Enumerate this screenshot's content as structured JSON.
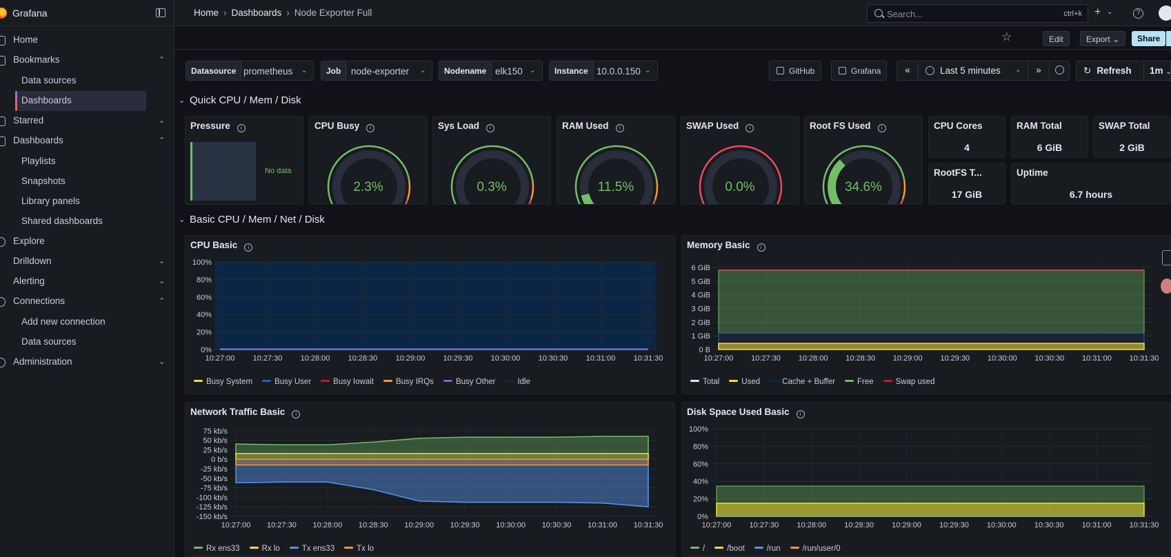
{
  "brand": "Grafana",
  "nav": {
    "home": "Home",
    "bookmarks": "Bookmarks",
    "bookmarks_items": [
      "Data sources",
      "Dashboards"
    ],
    "starred": "Starred",
    "dashboards": "Dashboards",
    "dashboards_items": [
      "Playlists",
      "Snapshots",
      "Library panels",
      "Shared dashboards"
    ],
    "explore": "Explore",
    "drilldown": "Drilldown",
    "alerting": "Alerting",
    "connections": "Connections",
    "connections_items": [
      "Add new connection",
      "Data sources"
    ],
    "administration": "Administration"
  },
  "breadcrumb": [
    "Home",
    "Dashboards",
    "Node Exporter Full"
  ],
  "search": {
    "placeholder": "Search...",
    "shortcut": "ctrl+k"
  },
  "toolbar": {
    "edit": "Edit",
    "export": "Export",
    "share": "Share"
  },
  "variables": [
    {
      "label": "Datasource",
      "value": "prometheus"
    },
    {
      "label": "Job",
      "value": "node-exporter"
    },
    {
      "label": "Nodename",
      "value": "elk150"
    },
    {
      "label": "Instance",
      "value": "10.0.0.150"
    }
  ],
  "links": [
    "GitHub",
    "Grafana"
  ],
  "time": {
    "range": "Last 5 minutes",
    "refresh": "Refresh",
    "interval": "1m"
  },
  "rows": [
    "Quick CPU / Mem / Disk",
    "Basic CPU / Mem / Net / Disk"
  ],
  "pressure": {
    "title": "Pressure",
    "nodata": "No data"
  },
  "gauges": [
    {
      "title": "CPU Busy",
      "value": "2.3%",
      "fraction": 0.023
    },
    {
      "title": "Sys Load",
      "value": "0.3%",
      "fraction": 0.003
    },
    {
      "title": "RAM Used",
      "value": "11.5%",
      "fraction": 0.115
    },
    {
      "title": "SWAP Used",
      "value": "0.0%",
      "fraction": 0.0
    },
    {
      "title": "Root FS Used",
      "value": "34.6%",
      "fraction": 0.346
    }
  ],
  "stats": [
    {
      "title": "CPU Cores",
      "value": "4"
    },
    {
      "title": "RAM Total",
      "value": "6 GiB"
    },
    {
      "title": "SWAP Total",
      "value": "2 GiB"
    },
    {
      "title": "RootFS T...",
      "value": "17 GiB"
    },
    {
      "title": "Uptime",
      "value": "6.7 hours"
    }
  ],
  "colors": {
    "green": "#73bf69",
    "yellow": "#fade2a",
    "blue": "#5794f2",
    "orange": "#ff9830",
    "red": "#f2495c",
    "purple": "#b877d9"
  },
  "chart_data": [
    {
      "type": "area",
      "title": "CPU Basic",
      "x": [
        "10:27:00",
        "10:27:30",
        "10:28:00",
        "10:28:30",
        "10:29:00",
        "10:29:30",
        "10:30:00",
        "10:30:30",
        "10:31:00",
        "10:31:30"
      ],
      "yticks": [
        "0%",
        "20%",
        "40%",
        "60%",
        "80%",
        "100%"
      ],
      "ylim": [
        0,
        100
      ],
      "series": [
        {
          "name": "Busy System",
          "color": "#fade2a",
          "values": [
            1,
            1,
            1,
            1,
            1,
            1,
            1,
            1,
            1,
            1
          ]
        },
        {
          "name": "Busy User",
          "color": "#1f60c4",
          "values": [
            1,
            1,
            1,
            1,
            1,
            1,
            1,
            1,
            1,
            1
          ]
        },
        {
          "name": "Busy Iowait",
          "color": "#c4162a",
          "values": [
            0,
            0,
            0,
            0,
            0,
            0,
            0,
            0,
            0,
            0
          ]
        },
        {
          "name": "Busy IRQs",
          "color": "#ff9830",
          "values": [
            0,
            0,
            0,
            0,
            0,
            0,
            0,
            0,
            0,
            0
          ]
        },
        {
          "name": "Busy Other",
          "color": "#a352cc",
          "values": [
            0,
            0,
            0,
            0,
            0,
            0,
            0,
            0,
            0,
            0
          ]
        },
        {
          "name": "Idle",
          "color": "#052b51",
          "values": [
            98,
            98,
            98,
            98,
            98,
            98,
            98,
            98,
            98,
            98
          ]
        }
      ]
    },
    {
      "type": "area",
      "title": "Memory Basic",
      "x": [
        "10:27:00",
        "10:27:30",
        "10:28:00",
        "10:28:30",
        "10:29:00",
        "10:29:30",
        "10:30:00",
        "10:30:30",
        "10:31:00",
        "10:31:30"
      ],
      "yticks": [
        "0 B",
        "1 GiB",
        "2 GiB",
        "3 GiB",
        "4 GiB",
        "5 GiB",
        "6 GiB"
      ],
      "ylim": [
        0,
        6.4
      ],
      "series": [
        {
          "name": "Total",
          "color": "#e6e6ef",
          "values": [
            5.8,
            5.8,
            5.8,
            5.8,
            5.8,
            5.8,
            5.8,
            5.8,
            5.8,
            5.8
          ]
        },
        {
          "name": "Used",
          "color": "#fade2a",
          "values": [
            0.45,
            0.45,
            0.45,
            0.45,
            0.45,
            0.45,
            0.45,
            0.45,
            0.45,
            0.45
          ]
        },
        {
          "name": "Cache + Buffer",
          "color": "#052b51",
          "values": [
            0.75,
            0.75,
            0.75,
            0.75,
            0.75,
            0.75,
            0.75,
            0.75,
            0.75,
            0.75
          ]
        },
        {
          "name": "Free",
          "color": "#73bf69",
          "values": [
            4.6,
            4.6,
            4.6,
            4.6,
            4.6,
            4.6,
            4.6,
            4.6,
            4.6,
            4.6
          ]
        },
        {
          "name": "Swap used",
          "color": "#c4162a",
          "values": [
            0,
            0,
            0,
            0,
            0,
            0,
            0,
            0,
            0,
            0
          ]
        }
      ]
    },
    {
      "type": "area",
      "title": "Network Traffic Basic",
      "x": [
        "10:27:00",
        "10:27:30",
        "10:28:00",
        "10:28:30",
        "10:29:00",
        "10:29:30",
        "10:30:00",
        "10:30:30",
        "10:31:00",
        "10:31:30"
      ],
      "yticks": [
        "-150 kb/s",
        "-125 kb/s",
        "-100 kb/s",
        "-75 kb/s",
        "-50 kb/s",
        "-25 kb/s",
        "0 b/s",
        "25 kb/s",
        "50 kb/s",
        "75 kb/s"
      ],
      "ylim": [
        -150,
        80
      ],
      "series": [
        {
          "name": "Rx ens33",
          "color": "#73bf69",
          "values": [
            40,
            38,
            38,
            45,
            55,
            58,
            58,
            58,
            60,
            60
          ]
        },
        {
          "name": "Rx lo",
          "color": "#fade2a",
          "values": [
            15,
            15,
            15,
            15,
            15,
            15,
            15,
            15,
            15,
            15
          ]
        },
        {
          "name": "Tx ens33",
          "color": "#5794f2",
          "values": [
            -62,
            -60,
            -60,
            -80,
            -110,
            -113,
            -113,
            -113,
            -115,
            -125
          ]
        },
        {
          "name": "Tx lo",
          "color": "#ff9830",
          "values": [
            -15,
            -15,
            -15,
            -15,
            -15,
            -15,
            -15,
            -15,
            -15,
            -15
          ]
        }
      ]
    },
    {
      "type": "area",
      "title": "Disk Space Used Basic",
      "x": [
        "10:27:00",
        "10:27:30",
        "10:28:00",
        "10:28:30",
        "10:29:00",
        "10:29:30",
        "10:30:00",
        "10:30:30",
        "10:31:00",
        "10:31:30"
      ],
      "yticks": [
        "0%",
        "20%",
        "40%",
        "60%",
        "80%",
        "100%"
      ],
      "ylim": [
        0,
        100
      ],
      "series": [
        {
          "name": "/",
          "color": "#73bf69",
          "values": [
            34.6,
            34.6,
            34.6,
            34.6,
            34.6,
            34.6,
            34.6,
            34.6,
            34.6,
            34.6
          ]
        },
        {
          "name": "/boot",
          "color": "#fade2a",
          "values": [
            15,
            15,
            15,
            15,
            15,
            15,
            15,
            15,
            15,
            15
          ]
        },
        {
          "name": "/run",
          "color": "#5794f2",
          "values": [
            0.5,
            0.5,
            0.5,
            0.5,
            0.5,
            0.5,
            0.5,
            0.5,
            0.5,
            0.5
          ]
        },
        {
          "name": "/run/user/0",
          "color": "#ff9830",
          "values": [
            0,
            0,
            0,
            0,
            0,
            0,
            0,
            0,
            0,
            0
          ]
        }
      ]
    }
  ]
}
